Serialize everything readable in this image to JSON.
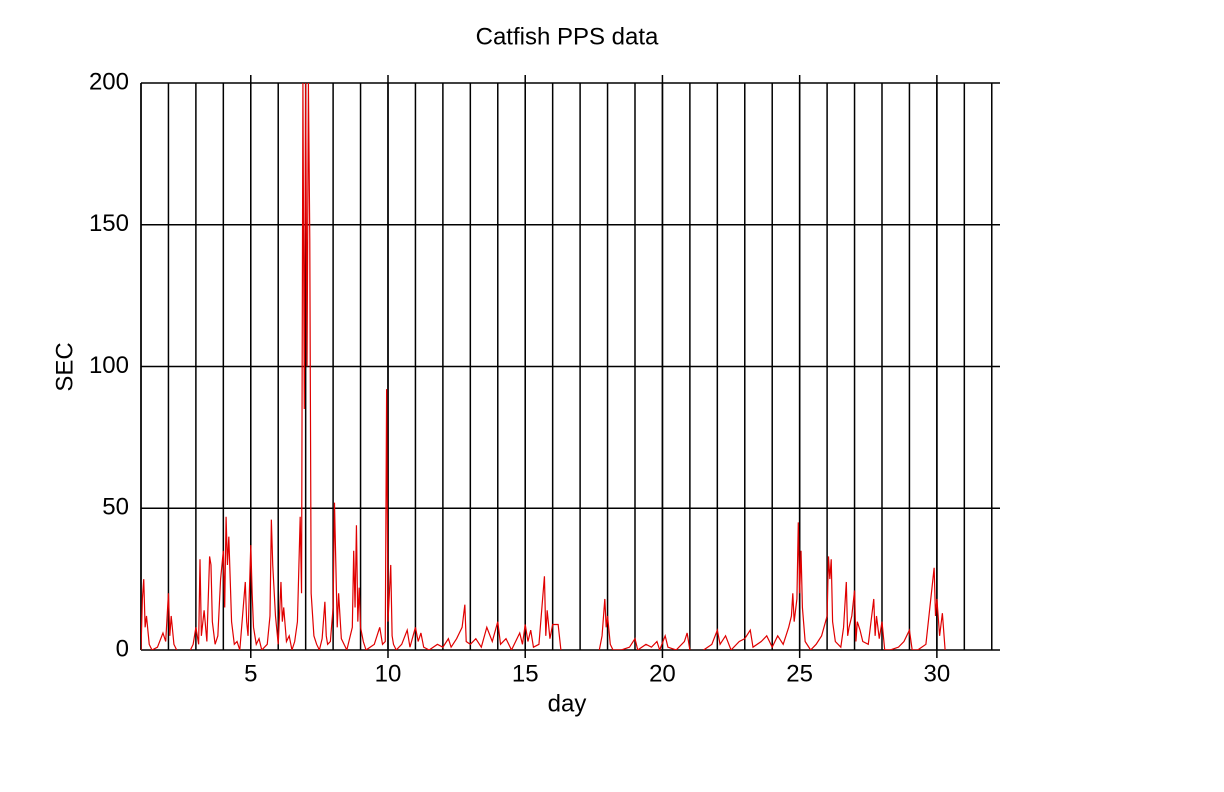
{
  "chart_data": {
    "type": "line",
    "title": "Catfish PPS data",
    "x_label": "day",
    "y_label": "SEC",
    "xlim": [
      1,
      32.3
    ],
    "ylim": [
      0,
      200
    ],
    "xticks": [
      5,
      10,
      15,
      20,
      25,
      30
    ],
    "yticks": [
      0,
      50,
      100,
      150,
      200
    ],
    "xgrid": [
      1,
      2,
      3,
      4,
      5,
      6,
      7,
      8,
      9,
      10,
      11,
      12,
      13,
      14,
      15,
      16,
      17,
      18,
      19,
      20,
      21,
      22,
      23,
      24,
      25,
      26,
      27,
      28,
      29,
      30,
      31,
      32
    ],
    "grid": true,
    "series": [
      {
        "color": "#e00000",
        "x": [
          1.0,
          1.05,
          1.1,
          1.15,
          1.2,
          1.3,
          1.4,
          1.6,
          1.8,
          1.9,
          2.0,
          2.05,
          2.1,
          2.2,
          2.3,
          2.5,
          2.8,
          2.9,
          3.0,
          3.1,
          3.15,
          3.2,
          3.3,
          3.4,
          3.5,
          3.55,
          3.6,
          3.7,
          3.8,
          3.9,
          4.0,
          4.05,
          4.1,
          4.15,
          4.2,
          4.3,
          4.4,
          4.5,
          4.6,
          4.8,
          4.85,
          4.9,
          5.0,
          5.05,
          5.1,
          5.2,
          5.3,
          5.4,
          5.6,
          5.7,
          5.75,
          5.8,
          5.9,
          6.0,
          6.1,
          6.15,
          6.2,
          6.3,
          6.4,
          6.5,
          6.6,
          6.7,
          6.8,
          6.85,
          6.9,
          6.95,
          7.0,
          7.05,
          7.1,
          7.15,
          7.2,
          7.3,
          7.4,
          7.5,
          7.6,
          7.7,
          7.75,
          7.8,
          7.9,
          8.0,
          8.05,
          8.1,
          8.15,
          8.2,
          8.3,
          8.4,
          8.5,
          8.7,
          8.75,
          8.8,
          8.85,
          8.9,
          8.95,
          9.0,
          9.1,
          9.2,
          9.5,
          9.7,
          9.8,
          9.9,
          9.95,
          10.0,
          10.05,
          10.1,
          10.15,
          10.2,
          10.3,
          10.5,
          10.7,
          10.8,
          11.0,
          11.1,
          11.2,
          11.3,
          11.5,
          11.8,
          12.0,
          12.2,
          12.3,
          12.5,
          12.7,
          12.8,
          12.85,
          13.0,
          13.2,
          13.4,
          13.6,
          13.8,
          14.0,
          14.1,
          14.3,
          14.5,
          14.8,
          14.9,
          15.0,
          15.1,
          15.2,
          15.3,
          15.5,
          15.7,
          15.75,
          15.8,
          15.9,
          16.0,
          16.2,
          16.3,
          16.5,
          17.7,
          17.8,
          17.9,
          17.95,
          18.0,
          18.1,
          18.2,
          18.5,
          18.8,
          19.0,
          19.1,
          19.4,
          19.6,
          19.8,
          19.9,
          20.1,
          20.2,
          20.5,
          20.8,
          20.9,
          21.0,
          21.3,
          21.5,
          21.8,
          22.0,
          22.1,
          22.3,
          22.5,
          22.8,
          23.0,
          23.2,
          23.3,
          23.6,
          23.8,
          24.0,
          24.2,
          24.4,
          24.6,
          24.7,
          24.75,
          24.8,
          24.9,
          24.95,
          25.0,
          25.05,
          25.1,
          25.2,
          25.4,
          25.6,
          25.8,
          26.0,
          26.05,
          26.1,
          26.15,
          26.2,
          26.3,
          26.5,
          26.6,
          26.7,
          26.75,
          26.8,
          26.9,
          27.0,
          27.05,
          27.1,
          27.2,
          27.3,
          27.5,
          27.7,
          27.75,
          27.8,
          27.9,
          28.0,
          28.1,
          28.3,
          28.6,
          28.8,
          29.0,
          29.1,
          29.3,
          29.6,
          29.8,
          29.9,
          29.95,
          30.0,
          30.1,
          30.2,
          30.3
        ],
        "values": [
          0,
          18,
          25,
          8,
          12,
          2,
          0,
          1,
          6,
          3,
          20,
          5,
          12,
          2,
          0,
          null,
          0,
          2,
          8,
          2,
          32,
          5,
          14,
          3,
          33,
          30,
          10,
          2,
          5,
          25,
          35,
          15,
          47,
          30,
          40,
          10,
          2,
          3,
          0,
          24,
          10,
          5,
          37,
          20,
          8,
          2,
          4,
          0,
          2,
          12,
          46,
          30,
          12,
          2,
          24,
          10,
          15,
          3,
          5,
          0,
          3,
          10,
          47,
          20,
          200,
          85,
          200,
          100,
          200,
          145,
          20,
          5,
          2,
          0,
          4,
          17,
          5,
          2,
          3,
          15,
          52,
          30,
          8,
          20,
          4,
          2,
          0,
          8,
          35,
          15,
          44,
          10,
          22,
          8,
          3,
          0,
          2,
          8,
          2,
          3,
          92,
          10,
          20,
          30,
          5,
          2,
          0,
          2,
          7,
          1,
          8,
          3,
          6,
          1,
          0,
          2,
          1,
          4,
          1,
          4,
          8,
          16,
          3,
          2,
          4,
          1,
          8,
          3,
          10,
          2,
          4,
          0,
          6,
          2,
          9,
          3,
          7,
          1,
          2,
          26,
          5,
          14,
          4,
          9,
          9,
          0,
          null,
          0,
          5,
          18,
          8,
          12,
          2,
          0,
          0,
          1,
          4,
          0,
          2,
          1,
          3,
          0,
          5,
          1,
          0,
          3,
          6,
          0,
          null,
          0,
          2,
          7,
          2,
          5,
          0,
          3,
          4,
          7,
          1,
          3,
          5,
          1,
          5,
          2,
          8,
          12,
          20,
          10,
          18,
          45,
          20,
          35,
          15,
          3,
          0,
          2,
          5,
          12,
          33,
          25,
          32,
          10,
          3,
          1,
          8,
          24,
          5,
          8,
          12,
          21,
          3,
          10,
          7,
          3,
          2,
          18,
          5,
          12,
          4,
          10,
          0,
          0,
          1,
          3,
          7,
          0,
          0,
          2,
          20,
          29,
          12,
          18,
          5,
          13,
          0
        ]
      }
    ]
  }
}
